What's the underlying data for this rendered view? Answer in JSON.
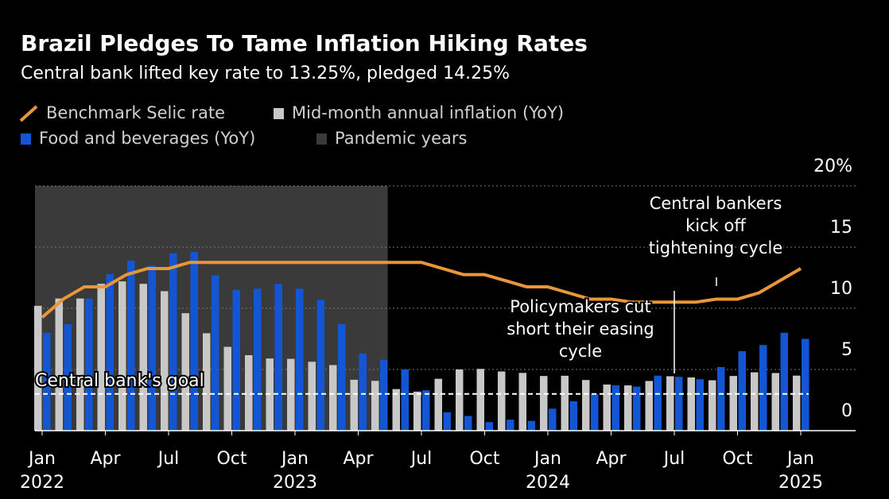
{
  "chart_data": {
    "type": "bar",
    "title": "Brazil Pledges To Tame Inflation Hiking Rates",
    "subtitle": "Central bank lifted key rate to 13.25%, pledged 14.25%",
    "categories": [
      "Jan",
      null,
      null,
      "Apr",
      null,
      null,
      "Jul",
      null,
      null,
      "Oct",
      null,
      null,
      "Jan",
      null,
      null,
      "Apr",
      null,
      null,
      "Jul",
      null,
      null,
      "Oct",
      null,
      null,
      "Jan",
      null,
      null,
      "Apr",
      null,
      null,
      "Jul",
      null,
      null,
      "Oct",
      null,
      null,
      "Jan"
    ],
    "year_labels": [
      {
        "index": 0,
        "label": "2022"
      },
      {
        "index": 12,
        "label": "2023"
      },
      {
        "index": 24,
        "label": "2024"
      },
      {
        "index": 36,
        "label": "2025"
      }
    ],
    "series": [
      {
        "name": "Benchmark Selic rate",
        "type": "line",
        "color": "#e8963a",
        "values": [
          9.25,
          10.75,
          11.75,
          11.75,
          12.75,
          13.25,
          13.25,
          13.75,
          13.75,
          13.75,
          13.75,
          13.75,
          13.75,
          13.75,
          13.75,
          13.75,
          13.75,
          13.75,
          13.75,
          13.25,
          12.75,
          12.75,
          12.25,
          11.75,
          11.75,
          11.25,
          10.75,
          10.75,
          10.5,
          10.5,
          10.5,
          10.5,
          10.75,
          10.75,
          11.25,
          12.25,
          13.25
        ]
      },
      {
        "name": "Mid-month annual inflation (YoY)",
        "type": "bar",
        "color": "#c8c8c8",
        "values": [
          10.2,
          10.8,
          10.8,
          12.0,
          12.2,
          12.0,
          11.4,
          9.6,
          7.96,
          6.85,
          6.17,
          5.9,
          5.87,
          5.63,
          5.36,
          4.16,
          4.07,
          3.4,
          3.19,
          4.24,
          5.0,
          5.05,
          4.84,
          4.72,
          4.47,
          4.49,
          4.14,
          3.77,
          3.7,
          4.06,
          4.45,
          4.35,
          4.12,
          4.47,
          4.77,
          4.71,
          4.5
        ]
      },
      {
        "name": "Food and beverages (YoY)",
        "type": "bar",
        "color": "#1256d6",
        "values": [
          8.0,
          8.7,
          10.8,
          12.8,
          13.9,
          13.5,
          14.5,
          14.6,
          12.7,
          11.5,
          11.6,
          12.0,
          11.6,
          10.7,
          8.7,
          6.3,
          5.8,
          5.0,
          3.3,
          1.5,
          1.2,
          0.7,
          0.9,
          0.8,
          1.8,
          2.4,
          3.0,
          3.7,
          3.6,
          4.5,
          4.4,
          4.2,
          5.2,
          6.5,
          7.0,
          8.0,
          7.5
        ]
      }
    ],
    "pandemic": {
      "name": "Pandemic years",
      "color": "#3a3a3a",
      "span": [
        0,
        16.4
      ]
    },
    "goal": {
      "label": "Central bank's goal",
      "value": 3
    },
    "annotations": [
      {
        "lines": [
          "Central bankers",
          "kick off",
          "tightening cycle"
        ],
        "index": 32
      },
      {
        "lines": [
          "Policymakers cut",
          "short their easing",
          "cycle"
        ],
        "index": 30
      }
    ],
    "ylim": [
      0,
      20
    ],
    "yticks": [
      0,
      5,
      10,
      15,
      {
        "value": 20,
        "label": "20%"
      }
    ],
    "grid": true
  }
}
